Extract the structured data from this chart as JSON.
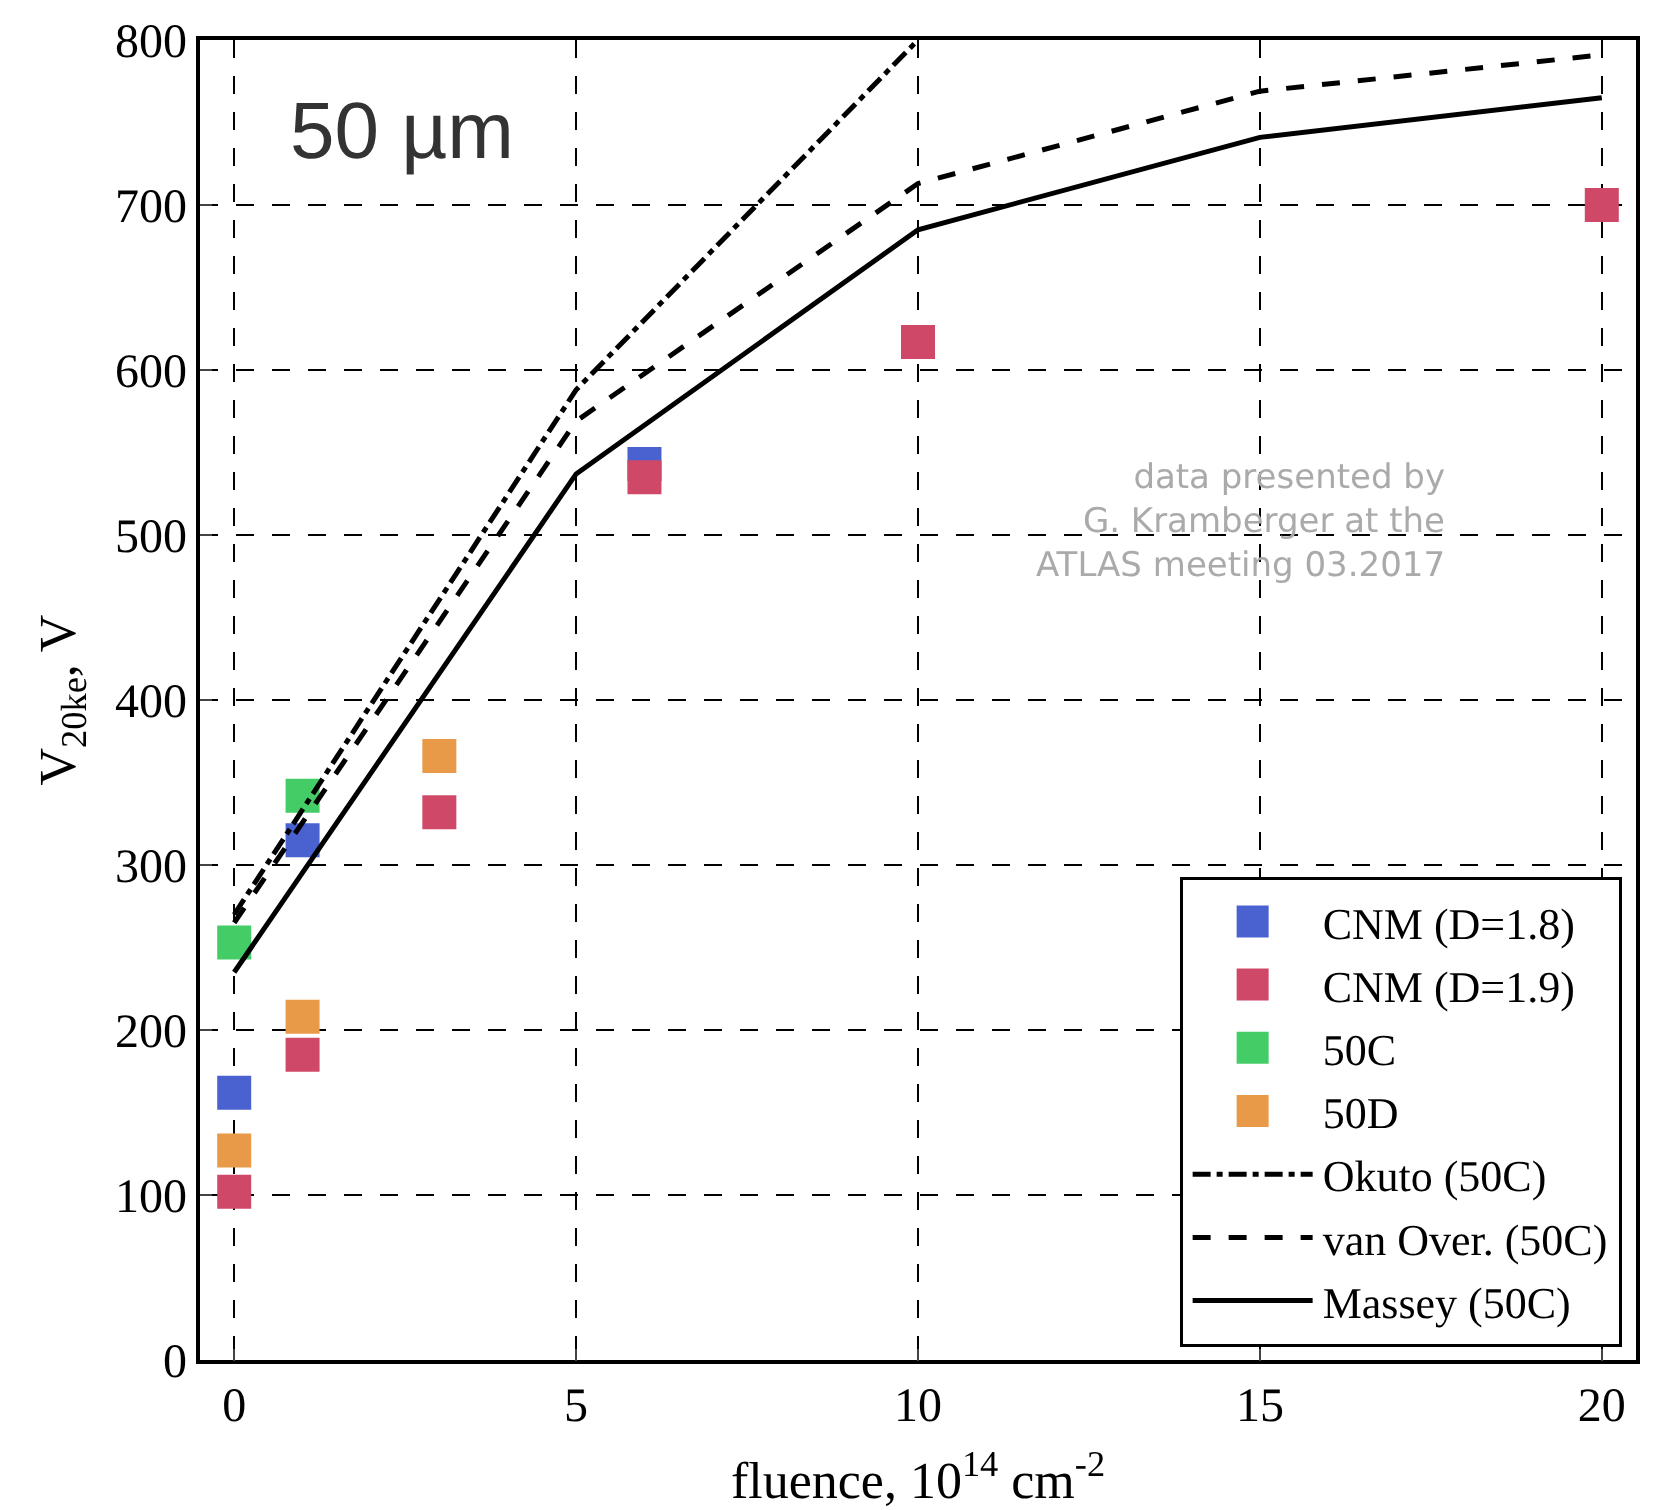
{
  "chart_data": {
    "type": "scatter",
    "xlabel": "fluence, 10$^{14}$ cm$^{-2}$",
    "ylabel": "V$_{20ke}$, V",
    "annotations": [
      "50 µm",
      "data presented by\nG. Kramberger at the\nATLAS meeting 03.2017"
    ],
    "xlim": [
      -0.5,
      20.5
    ],
    "xticks": [
      0,
      5,
      10,
      15,
      20
    ],
    "ylim": [
      0,
      800
    ],
    "yticks": [
      0,
      100,
      200,
      300,
      400,
      500,
      600,
      700,
      800
    ],
    "grid": true,
    "legend": "bottom right",
    "marker": "square",
    "series": [
      {
        "name": "CNM (D=1.8)",
        "color": "#4a62d0",
        "x": [
          0,
          1,
          6
        ],
        "values": [
          162,
          315,
          543
        ]
      },
      {
        "name": "CNM (D=1.9)",
        "color": "#d04868",
        "x": [
          0,
          1,
          3,
          6,
          10,
          20
        ],
        "values": [
          102,
          185,
          332,
          535,
          617,
          700
        ]
      },
      {
        "name": "50C",
        "color": "#44cc66",
        "x": [
          0,
          1
        ],
        "values": [
          253,
          342
        ]
      },
      {
        "name": "50D",
        "color": "#e89a48",
        "x": [
          0,
          1,
          3
        ],
        "values": [
          127,
          208,
          366
        ]
      },
      {
        "name": "Okuto (50C)",
        "type": "line",
        "marker": "none",
        "line_style": "dashdot",
        "color": "#000000",
        "x": [
          0,
          5,
          10
        ],
        "values": [
          270,
          588,
          800
        ]
      },
      {
        "name": "van Over. (50C)",
        "type": "line",
        "marker": "none",
        "line_style": "dashed",
        "color": "#000000",
        "x": [
          0,
          5,
          10,
          15,
          20
        ],
        "values": [
          265,
          569,
          713,
          769,
          791
        ]
      },
      {
        "name": "Massey (50C)",
        "type": "line",
        "marker": "none",
        "line_style": "solid",
        "color": "#000000",
        "x": [
          0,
          5,
          10,
          15,
          20
        ],
        "values": [
          235,
          537,
          685,
          741,
          765
        ]
      }
    ]
  }
}
